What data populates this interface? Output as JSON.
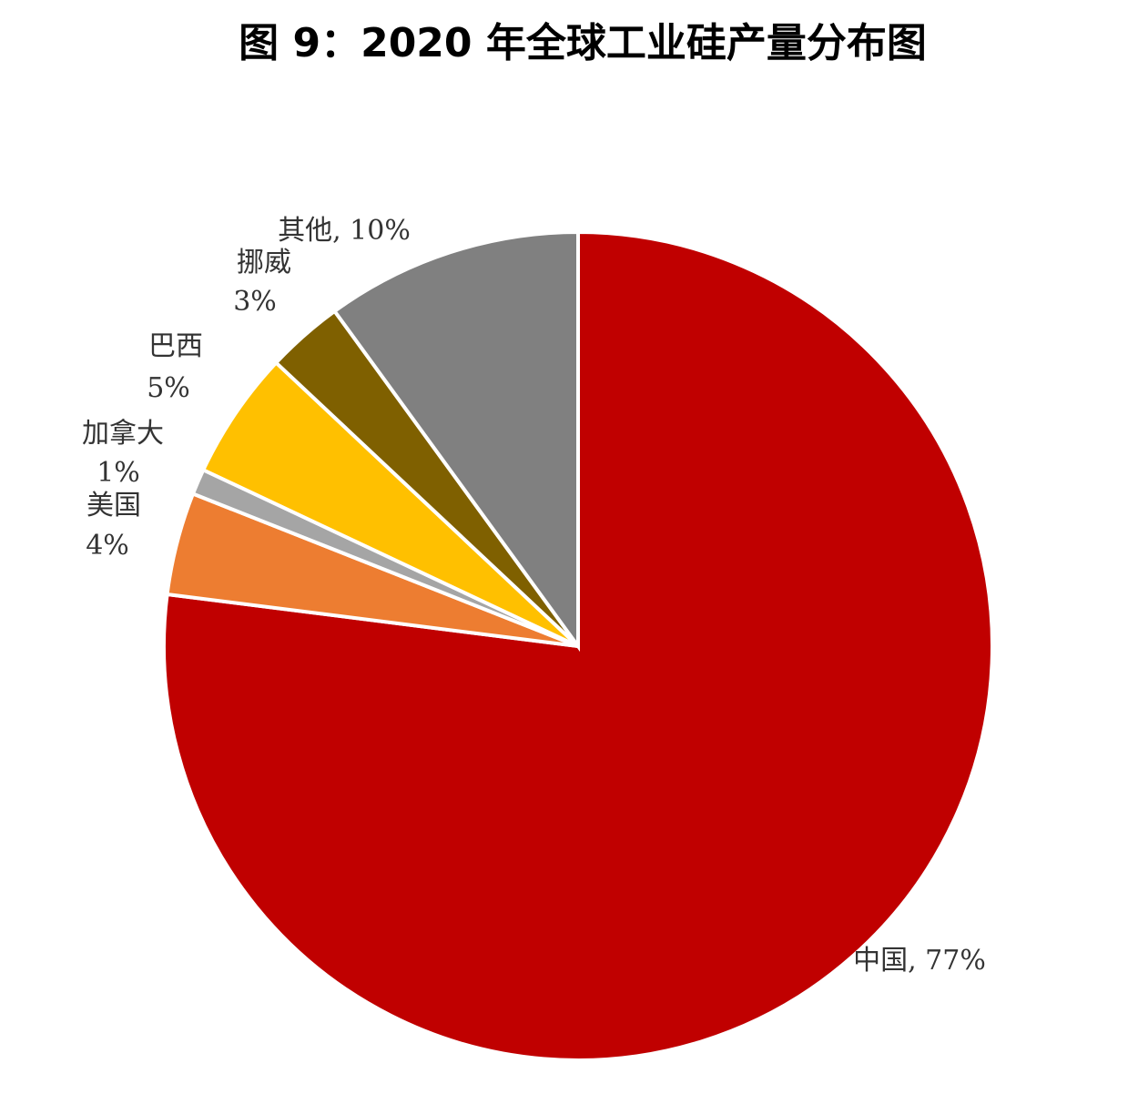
{
  "chart_data": {
    "type": "pie",
    "title": "图 9：2020 年全球工业硅产量分布图",
    "categories": [
      "中国",
      "美国",
      "加拿大",
      "巴西",
      "挪威",
      "其他"
    ],
    "values": [
      77,
      4,
      1,
      5,
      3,
      10
    ],
    "value_labels": [
      ", 77%",
      "4%",
      "1%",
      "5%",
      "3%",
      ", 10%"
    ],
    "colors": [
      "#c00000",
      "#ed7d31",
      "#a5a5a5",
      "#ffc000",
      "#7f6000",
      "#808080"
    ]
  }
}
